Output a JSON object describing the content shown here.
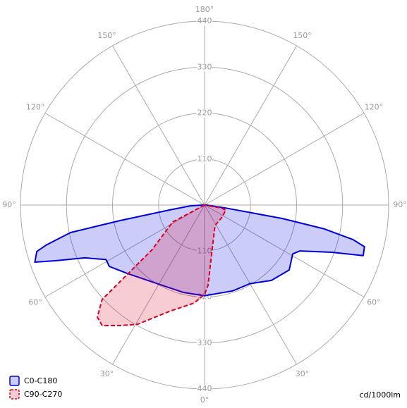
{
  "chart_data": {
    "type": "polar",
    "unit_label": "cd/1000lm",
    "rlim": [
      0,
      440
    ],
    "rticks": [
      110,
      220,
      330,
      440
    ],
    "thetaticks": [
      {
        "value": 0,
        "label": "0°"
      },
      {
        "value": 30,
        "label": "30°"
      },
      {
        "value": 60,
        "label": "60°"
      },
      {
        "value": 90,
        "label": "90°"
      },
      {
        "value": 120,
        "label": "120°"
      },
      {
        "value": 150,
        "label": "150°"
      },
      {
        "value": 180,
        "label": "180°"
      },
      {
        "value": -150,
        "label": "150°"
      },
      {
        "value": -120,
        "label": "120°"
      },
      {
        "value": -90,
        "label": "90°"
      },
      {
        "value": -60,
        "label": "60°"
      },
      {
        "value": -30,
        "label": "30°"
      }
    ],
    "series": [
      {
        "name": "C0-C180",
        "color": "#0000dd",
        "dashed": false,
        "angles": [
          -90,
          -87,
          -82,
          -79.6,
          -78.4,
          -75.8,
          -74.5,
          -71.4,
          -69.4,
          -66.2,
          -61,
          -57.2,
          -48.6,
          -27.8,
          -13.6,
          0,
          18,
          30,
          41.6,
          52.5,
          61,
          64.3,
          69.6,
          72.3,
          75.4,
          76.9,
          78.7,
          80.2,
          82,
          90
        ],
        "values": [
          5,
          34,
          85,
          206,
          327,
          391,
          416,
          428,
          378,
          313,
          269,
          271,
          247,
          217,
          215,
          217,
          216,
          217,
          241,
          255,
          241,
          253,
          324,
          398,
          395,
          364,
          292,
          188,
          51,
          5
        ]
      },
      {
        "name": "C90-C270",
        "color": "#dd0022",
        "dashed": true,
        "angles": [
          -90,
          -62,
          -49.5,
          -47.9,
          -47.3,
          -43.7,
          -40.3,
          -35,
          -29.3,
          -18.3,
          -6.2,
          0,
          2.5,
          8.2,
          27,
          56,
          77,
          80,
          90
        ],
        "values": [
          0,
          86,
          166,
          261,
          333,
          371,
          378,
          352,
          327,
          268,
          236,
          214,
          192,
          118,
          55,
          51,
          52,
          38,
          0
        ]
      }
    ]
  }
}
